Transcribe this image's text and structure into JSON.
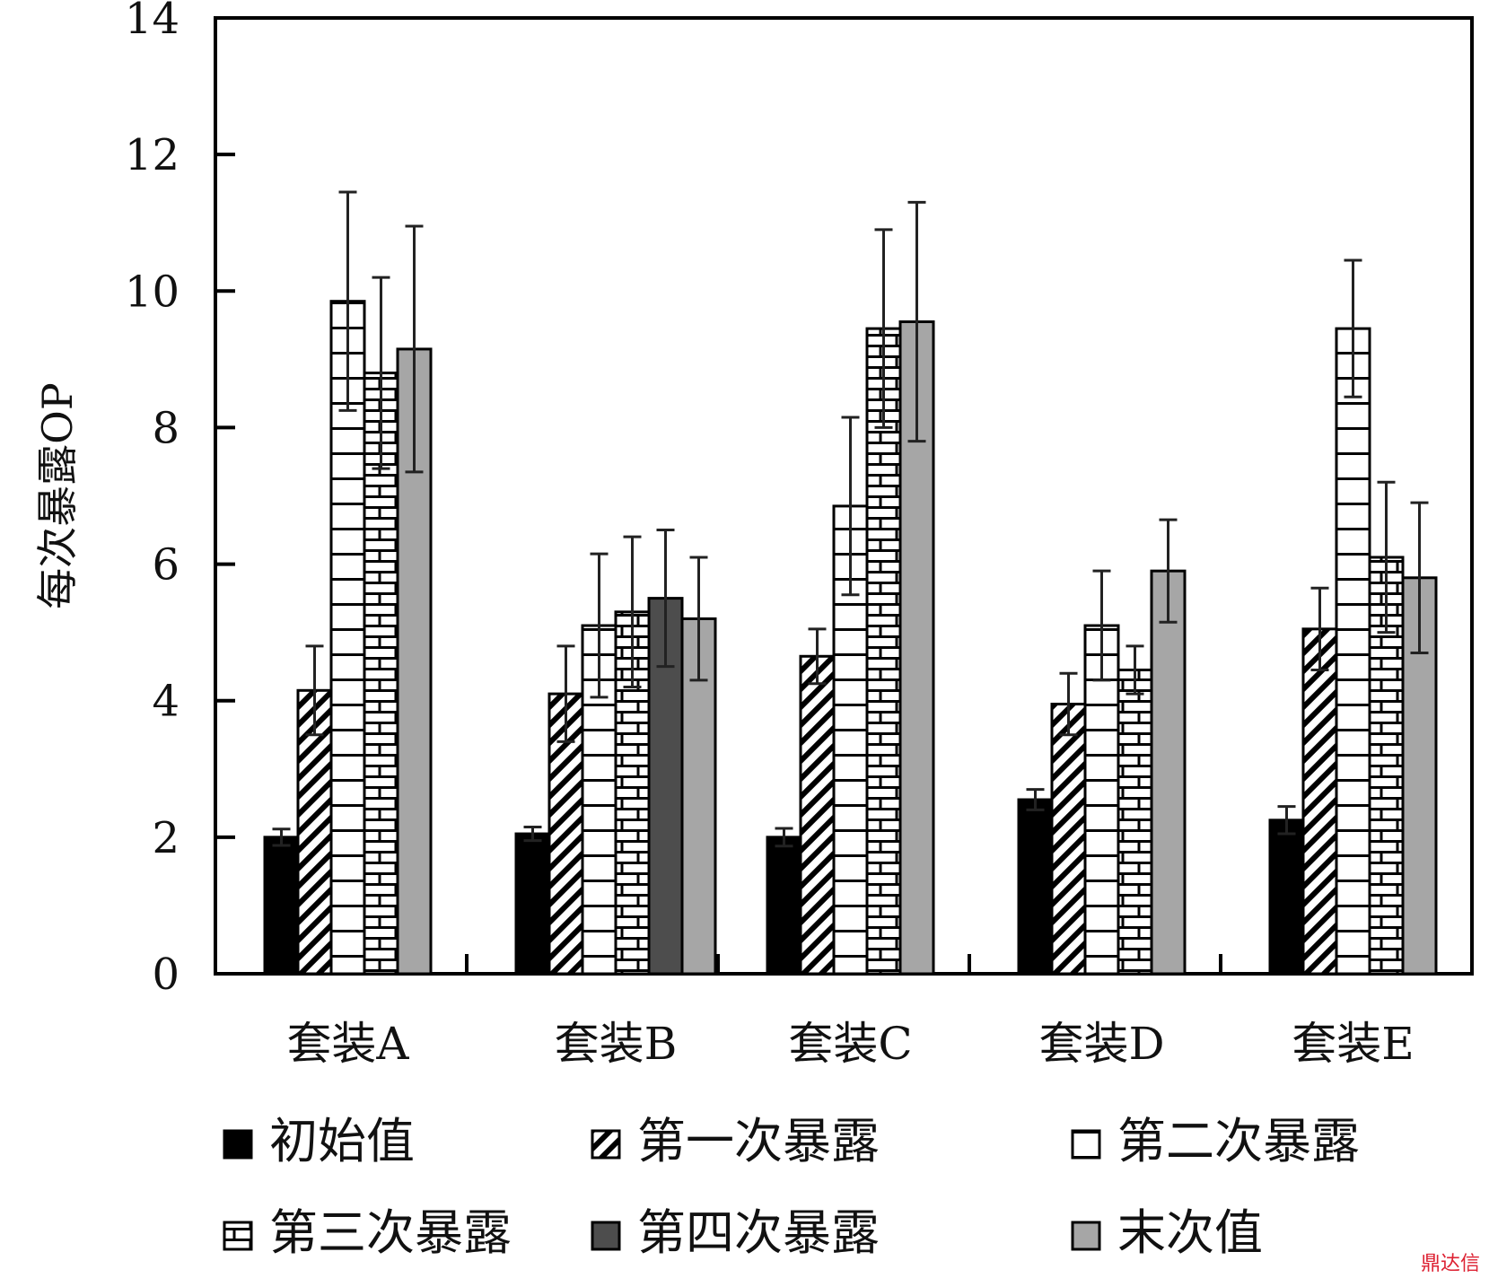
{
  "chart_data": {
    "type": "bar",
    "title": "",
    "xlabel": "",
    "ylabel": "每次暴露OP",
    "ylim": [
      0,
      14
    ],
    "yticks": [
      0,
      2,
      4,
      6,
      8,
      10,
      12,
      14
    ],
    "grid": false,
    "legend_position": "bottom",
    "categories": [
      "套装A",
      "套装B",
      "套装C",
      "套装D",
      "套装E"
    ],
    "series": [
      {
        "name": "初始值",
        "pattern": "solid-black",
        "color": "#000000",
        "values": [
          2.0,
          2.05,
          2.0,
          2.55,
          2.25
        ],
        "errors": [
          0.12,
          0.1,
          0.13,
          0.15,
          0.2
        ]
      },
      {
        "name": "第一次暴露",
        "pattern": "diagonal-hatch",
        "color": "#ffffff",
        "values": [
          4.15,
          4.1,
          4.65,
          3.95,
          5.05
        ],
        "errors": [
          0.65,
          0.7,
          0.4,
          0.45,
          0.6
        ]
      },
      {
        "name": "第二次暴露",
        "pattern": "horizontal-lines",
        "color": "#ffffff",
        "values": [
          9.85,
          5.1,
          6.85,
          5.1,
          9.45
        ],
        "errors": [
          1.6,
          1.05,
          1.3,
          0.8,
          1.0
        ]
      },
      {
        "name": "第三次暴露",
        "pattern": "brick",
        "color": "#ffffff",
        "values": [
          8.8,
          5.3,
          9.45,
          4.45,
          6.1
        ],
        "errors": [
          1.4,
          1.1,
          1.45,
          0.35,
          1.1
        ]
      },
      {
        "name": "第四次暴露",
        "pattern": "solid-dark-gray",
        "color": "#4d4d4d",
        "values": [
          null,
          5.5,
          null,
          null,
          null
        ],
        "errors": [
          null,
          1.0,
          null,
          null,
          null
        ]
      },
      {
        "name": "末次值",
        "pattern": "solid-light-gray",
        "color": "#a6a6a6",
        "values": [
          9.15,
          5.2,
          9.55,
          5.9,
          5.8
        ],
        "errors": [
          1.8,
          0.9,
          1.75,
          0.75,
          1.1
        ]
      }
    ]
  },
  "watermark": "鼎达信"
}
